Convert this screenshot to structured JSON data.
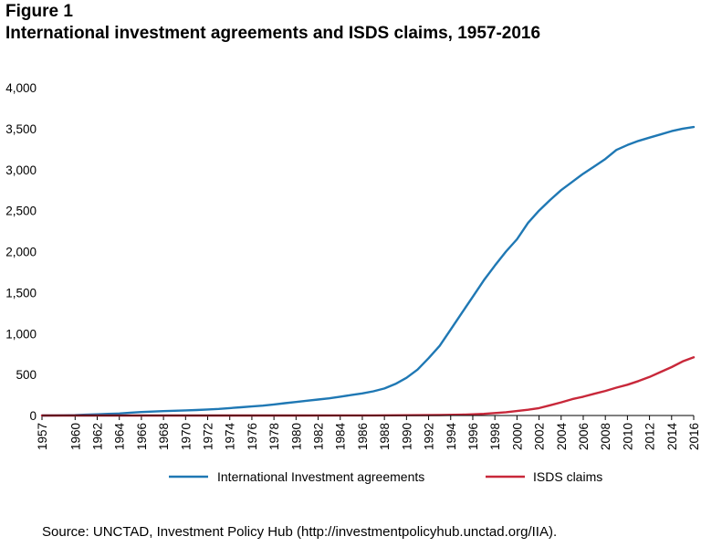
{
  "figure_label": "Figure 1",
  "title": "International investment agreements and ISDS claims, 1957-2016",
  "source": "Source: UNCTAD, Investment Policy Hub (http://investmentpolicyhub.unctad.org/IIA).",
  "colors": {
    "iia": "#1f78b4",
    "isds": "#c8283a",
    "axis": "#000000"
  },
  "chart_data": {
    "type": "line",
    "title": "International investment agreements and ISDS claims, 1957-2016",
    "xlabel": "",
    "ylabel": "",
    "xlim": [
      1957,
      2016
    ],
    "ylim": [
      0,
      4000
    ],
    "grid": false,
    "legend_position": "bottom",
    "y_ticks": [
      "0",
      "500",
      "1,000",
      "1,500",
      "2,000",
      "2,500",
      "3,000",
      "3,500",
      "4,000"
    ],
    "x_ticks": [
      "1957",
      "1960",
      "1962",
      "1964",
      "1966",
      "1968",
      "1970",
      "1972",
      "1974",
      "1976",
      "1978",
      "1980",
      "1982",
      "1984",
      "1986",
      "1988",
      "1990",
      "1992",
      "1994",
      "1996",
      "1998",
      "2000",
      "2002",
      "2004",
      "2006",
      "2008",
      "2010",
      "2012",
      "2014",
      "2016"
    ],
    "series": [
      {
        "name": "International Investment agreements",
        "color": "#1f78b4",
        "points": [
          [
            1957,
            0
          ],
          [
            1958,
            1
          ],
          [
            1959,
            2
          ],
          [
            1960,
            5
          ],
          [
            1961,
            10
          ],
          [
            1962,
            15
          ],
          [
            1963,
            20
          ],
          [
            1964,
            25
          ],
          [
            1965,
            35
          ],
          [
            1966,
            42
          ],
          [
            1967,
            48
          ],
          [
            1968,
            53
          ],
          [
            1969,
            58
          ],
          [
            1970,
            62
          ],
          [
            1971,
            67
          ],
          [
            1972,
            73
          ],
          [
            1973,
            80
          ],
          [
            1974,
            90
          ],
          [
            1975,
            100
          ],
          [
            1976,
            110
          ],
          [
            1977,
            120
          ],
          [
            1978,
            135
          ],
          [
            1979,
            150
          ],
          [
            1980,
            165
          ],
          [
            1981,
            180
          ],
          [
            1982,
            195
          ],
          [
            1983,
            210
          ],
          [
            1984,
            230
          ],
          [
            1985,
            250
          ],
          [
            1986,
            270
          ],
          [
            1987,
            295
          ],
          [
            1988,
            330
          ],
          [
            1989,
            385
          ],
          [
            1990,
            460
          ],
          [
            1991,
            560
          ],
          [
            1992,
            700
          ],
          [
            1993,
            850
          ],
          [
            1994,
            1050
          ],
          [
            1995,
            1250
          ],
          [
            1996,
            1450
          ],
          [
            1997,
            1650
          ],
          [
            1998,
            1830
          ],
          [
            1999,
            2000
          ],
          [
            2000,
            2150
          ],
          [
            2001,
            2350
          ],
          [
            2002,
            2500
          ],
          [
            2003,
            2630
          ],
          [
            2004,
            2750
          ],
          [
            2005,
            2850
          ],
          [
            2006,
            2950
          ],
          [
            2007,
            3040
          ],
          [
            2008,
            3130
          ],
          [
            2009,
            3240
          ],
          [
            2010,
            3300
          ],
          [
            2011,
            3350
          ],
          [
            2012,
            3390
          ],
          [
            2013,
            3430
          ],
          [
            2014,
            3470
          ],
          [
            2015,
            3500
          ],
          [
            2016,
            3520
          ]
        ]
      },
      {
        "name": "ISDS claims",
        "color": "#c8283a",
        "points": [
          [
            1957,
            0
          ],
          [
            1970,
            0
          ],
          [
            1980,
            0
          ],
          [
            1987,
            1
          ],
          [
            1990,
            3
          ],
          [
            1993,
            6
          ],
          [
            1995,
            10
          ],
          [
            1996,
            15
          ],
          [
            1997,
            20
          ],
          [
            1998,
            30
          ],
          [
            1999,
            40
          ],
          [
            2000,
            55
          ],
          [
            2001,
            70
          ],
          [
            2002,
            90
          ],
          [
            2003,
            125
          ],
          [
            2004,
            160
          ],
          [
            2005,
            200
          ],
          [
            2006,
            230
          ],
          [
            2007,
            265
          ],
          [
            2008,
            300
          ],
          [
            2009,
            340
          ],
          [
            2010,
            375
          ],
          [
            2011,
            420
          ],
          [
            2012,
            470
          ],
          [
            2013,
            530
          ],
          [
            2014,
            590
          ],
          [
            2015,
            660
          ],
          [
            2016,
            710
          ]
        ]
      }
    ]
  }
}
